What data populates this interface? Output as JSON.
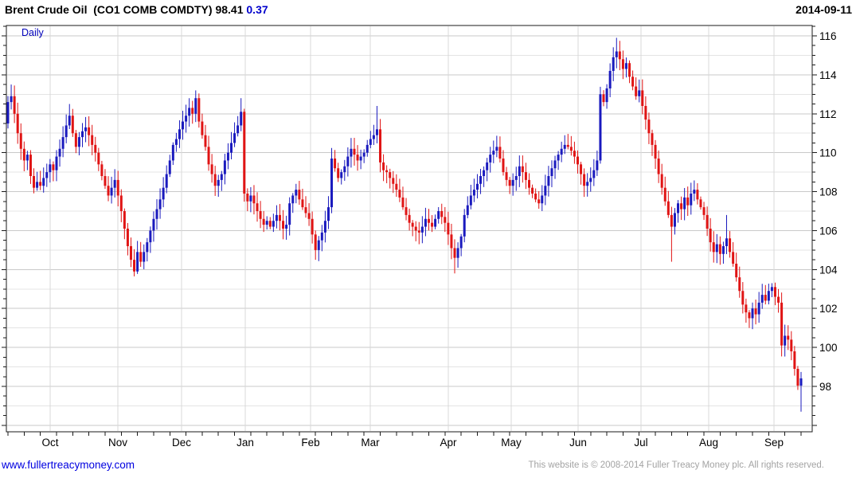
{
  "header": {
    "instrument": "Brent Crude Oil  (CO1 COMB COMDTY)",
    "last_price": "98.41",
    "change": "0.37",
    "date": "2014-09-11",
    "change_color": "#0000cc"
  },
  "chart": {
    "frequency_label": "Daily"
  },
  "footer": {
    "website": "www.fullertreacymoney.com",
    "copyright": "This website is © 2008-2014 Fuller Treacy Money plc. All rights reserved."
  },
  "chart_data": {
    "type": "candlestick",
    "title": "Brent Crude Oil (CO1 COMB COMDTY)",
    "frequency": "Daily",
    "last_price": 98.41,
    "change": 0.37,
    "date": "2014-09-11",
    "y_axis": {
      "min": 98,
      "max": 116,
      "tick_step": 2,
      "minor_step": 1,
      "labels": [
        116,
        114,
        112,
        110,
        108,
        106,
        104,
        102,
        100,
        98
      ]
    },
    "x_axis": {
      "months": [
        "Oct",
        "Nov",
        "Dec",
        "Jan",
        "Feb",
        "Mar",
        "Apr",
        "May",
        "Jun",
        "Jul",
        "Aug",
        "Sep"
      ],
      "month_x": [
        63,
        148,
        228,
        308,
        390,
        465,
        563,
        642,
        726,
        805,
        890,
        972
      ]
    },
    "colors": {
      "up": "#1a1abe",
      "down": "#e01414",
      "grid_major": "#c9c9c9",
      "grid_minor": "#e4e4e4",
      "grid_vertical": "#d9d9d9",
      "border": "#1a1a1a"
    },
    "first_open": 111.5,
    "closes": [
      112.6,
      112.9,
      112.0,
      111.0,
      110.2,
      109.6,
      109.9,
      108.8,
      108.2,
      108.5,
      108.3,
      108.7,
      109.0,
      109.4,
      109.1,
      109.8,
      110.2,
      110.8,
      111.4,
      111.9,
      111.0,
      110.3,
      110.8,
      111.1,
      111.3,
      110.9,
      110.4,
      110.0,
      109.4,
      108.8,
      108.3,
      107.8,
      108.2,
      108.6,
      107.8,
      107.0,
      106.1,
      105.2,
      104.5,
      103.9,
      104.9,
      104.4,
      104.9,
      105.4,
      106.0,
      106.6,
      107.1,
      107.6,
      108.2,
      108.9,
      109.6,
      110.4,
      110.7,
      111.2,
      111.6,
      111.9,
      112.3,
      112.0,
      112.8,
      111.6,
      110.9,
      110.3,
      109.4,
      108.9,
      108.3,
      108.6,
      108.9,
      109.6,
      110.0,
      110.5,
      111.0,
      111.4,
      112.1,
      107.9,
      107.5,
      107.8,
      107.4,
      107.0,
      106.6,
      106.3,
      106.5,
      106.2,
      106.5,
      106.8,
      106.5,
      106.1,
      106.3,
      107.4,
      107.8,
      108.1,
      107.6,
      107.2,
      106.9,
      106.6,
      105.8,
      105.0,
      105.5,
      105.9,
      106.5,
      107.2,
      109.7,
      109.2,
      108.7,
      109.0,
      109.3,
      109.8,
      110.2,
      109.9,
      109.6,
      109.8,
      110.0,
      110.4,
      110.7,
      110.9,
      111.2,
      109.5,
      109.1,
      109.0,
      108.7,
      108.4,
      108.1,
      107.7,
      107.2,
      106.8,
      106.4,
      106.2,
      106.0,
      105.9,
      106.2,
      106.6,
      106.4,
      106.2,
      106.6,
      107.0,
      106.7,
      106.4,
      105.8,
      105.1,
      104.6,
      105.1,
      105.7,
      106.8,
      107.3,
      107.8,
      108.1,
      108.4,
      108.8,
      109.1,
      109.5,
      109.9,
      110.1,
      110.3,
      109.7,
      109.0,
      108.6,
      108.3,
      108.6,
      108.8,
      109.3,
      109.0,
      108.6,
      108.2,
      107.9,
      107.6,
      107.4,
      107.8,
      108.3,
      108.8,
      109.2,
      109.6,
      109.9,
      110.2,
      110.4,
      110.3,
      110.1,
      109.8,
      109.4,
      108.9,
      108.3,
      108.5,
      108.7,
      109.1,
      109.6,
      113.0,
      112.6,
      113.3,
      114.2,
      114.9,
      115.2,
      114.8,
      114.3,
      114.6,
      113.9,
      113.4,
      112.9,
      113.2,
      112.4,
      111.7,
      111.0,
      110.4,
      109.7,
      108.9,
      108.2,
      107.5,
      106.8,
      106.2,
      106.9,
      107.4,
      107.1,
      107.7,
      107.3,
      107.9,
      108.1,
      107.6,
      107.2,
      106.8,
      106.1,
      105.4,
      104.9,
      105.3,
      104.8,
      105.2,
      105.6,
      104.9,
      104.3,
      103.6,
      102.9,
      102.2,
      101.8,
      101.5,
      102.0,
      101.7,
      102.3,
      102.7,
      102.4,
      102.9,
      103.1,
      102.6,
      102.3,
      100.1,
      100.6,
      100.4,
      99.8,
      98.9,
      98.04,
      98.41
    ],
    "wick_overrides": {
      "1": [
        113.5,
        null
      ],
      "19": [
        112.5,
        null
      ],
      "58": [
        113.2,
        null
      ],
      "72": [
        112.8,
        null
      ],
      "95": [
        null,
        104.5
      ],
      "114": [
        112.4,
        null
      ],
      "127": [
        null,
        105.3
      ],
      "138": [
        null,
        103.8
      ],
      "188": [
        115.9,
        null
      ],
      "205": [
        null,
        104.4
      ],
      "222": [
        106.8,
        null
      ],
      "229": [
        null,
        101.0
      ],
      "245": [
        null,
        96.7
      ]
    }
  }
}
